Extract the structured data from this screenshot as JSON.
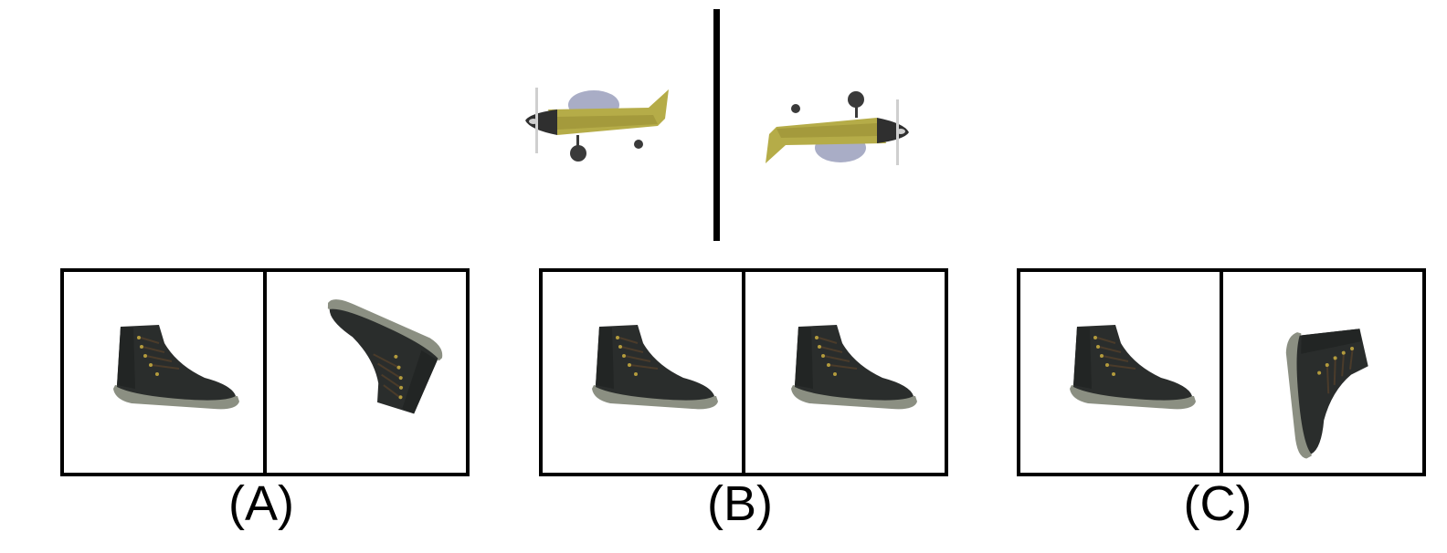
{
  "reference": {
    "left_object": "toy-airplane",
    "right_object": "toy-airplane-mirrored"
  },
  "options": [
    {
      "label": "(A)",
      "left": "boot",
      "right": "boot-rotated-upside"
    },
    {
      "label": "(B)",
      "left": "boot",
      "right": "boot"
    },
    {
      "label": "(C)",
      "left": "boot",
      "right": "boot-rotated-side"
    }
  ],
  "colors": {
    "plane_body": "#b5ac48",
    "plane_dark": "#2f2f2f",
    "plane_wing": "#a9adc6",
    "boot_body": "#2a2d2c",
    "boot_sole": "#8b8f82",
    "frame": "#000000"
  }
}
